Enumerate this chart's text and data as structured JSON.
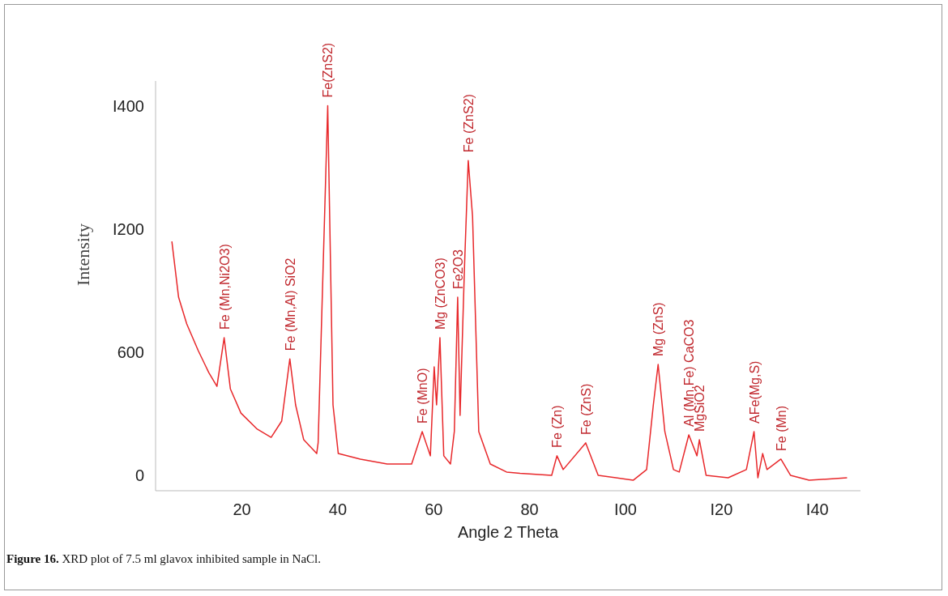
{
  "chart_data": {
    "type": "line",
    "xlabel": "Angle 2 Theta",
    "ylabel": "Intensity",
    "x": [
      5.4,
      6.8,
      8.5,
      10.9,
      13.1,
      14.8,
      16.3,
      17.6,
      19.8,
      23.2,
      26.1,
      28.3,
      30.0,
      31.2,
      32.9,
      35.6,
      35.9,
      37.9,
      39.0,
      40.1,
      44.7,
      50.3,
      55.4,
      57.6,
      59.3,
      60.1,
      60.6,
      61.3,
      62.1,
      63.5,
      64.3,
      65.0,
      65.5,
      66.4,
      67.2,
      68.1,
      69.4,
      71.8,
      75.2,
      78.0,
      84.6,
      85.7,
      87.0,
      91.7,
      94.3,
      101.6,
      104.4,
      105.8,
      106.8,
      108.2,
      110.0,
      111.2,
      113.2,
      114.9,
      115.4,
      116.8,
      121.4,
      125.2,
      126.8,
      127.6,
      128.6,
      129.5,
      132.4,
      134.4,
      138.3,
      146.2
    ],
    "series": [
      {
        "color": "#e8282b",
        "values": [
          1139,
          867,
          737,
          607,
          500,
          433,
          670,
          421,
          303,
          225,
          185,
          264,
          567,
          343,
          173,
          106,
          158,
          1800,
          343,
          106,
          79,
          55,
          55,
          213,
          95,
          528,
          343,
          670,
          95,
          55,
          213,
          867,
          292,
          1000,
          1533,
          1261,
          213,
          55,
          16,
          10,
          0,
          95,
          28,
          158,
          0,
          -24,
          28,
          343,
          540,
          213,
          28,
          16,
          197,
          95,
          173,
          0,
          -12,
          28,
          213,
          -12,
          106,
          28,
          79,
          0,
          -24,
          -12
        ]
      }
    ],
    "xlim": [
      2,
      149
    ],
    "xticks": [
      20,
      40,
      60,
      80,
      {
        "value": 100,
        "label": "I00"
      },
      {
        "value": 120,
        "label": "I20"
      },
      {
        "value": 140,
        "label": "I40"
      }
    ],
    "ylim": [
      -75,
      1920
    ],
    "yticks": [
      0,
      600,
      {
        "value": 1200,
        "label": "I200"
      },
      {
        "value": 1800,
        "label": "I400"
      }
    ],
    "grid": false,
    "legend": false,
    "marker": "none",
    "line_style": "solid",
    "annotations": [
      {
        "text": "Fe (Mn,Ni2O3)",
        "x": 16.3,
        "y": 670
      },
      {
        "text": "Fe (Mn,Al) SiO2",
        "x": 30.0,
        "y": 567
      },
      {
        "text": "Fe(ZnS2)",
        "x": 37.9,
        "y": 1800
      },
      {
        "text": "Fe (MnO)",
        "x": 57.6,
        "y": 213
      },
      {
        "text": "Mg (ZnCO3)",
        "x": 61.3,
        "y": 670
      },
      {
        "text": "Fe2O3",
        "x": 65.0,
        "y": 867
      },
      {
        "text": "Fe (ZnS2)",
        "x": 67.2,
        "y": 1533
      },
      {
        "text": "Fe (Zn)",
        "x": 85.7,
        "y": 95
      },
      {
        "text": "Fe (ZnS)",
        "x": 91.7,
        "y": 158
      },
      {
        "text": "Mg (ZnS)",
        "x": 106.8,
        "y": 540
      },
      {
        "text": "Al (Mn,Fe) CaCO3",
        "x": 113.2,
        "y": 197
      },
      {
        "text": "MgSiO2",
        "x": 115.4,
        "y": 173
      },
      {
        "text": "AFe(Mg,S)",
        "x": 126.8,
        "y": 213
      },
      {
        "text": "Fe (Mn)",
        "x": 132.4,
        "y": 79
      },
      "Figure 16. XRD plot of 7.5 ml glavox inhibited sample in NaCl."
    ]
  }
}
